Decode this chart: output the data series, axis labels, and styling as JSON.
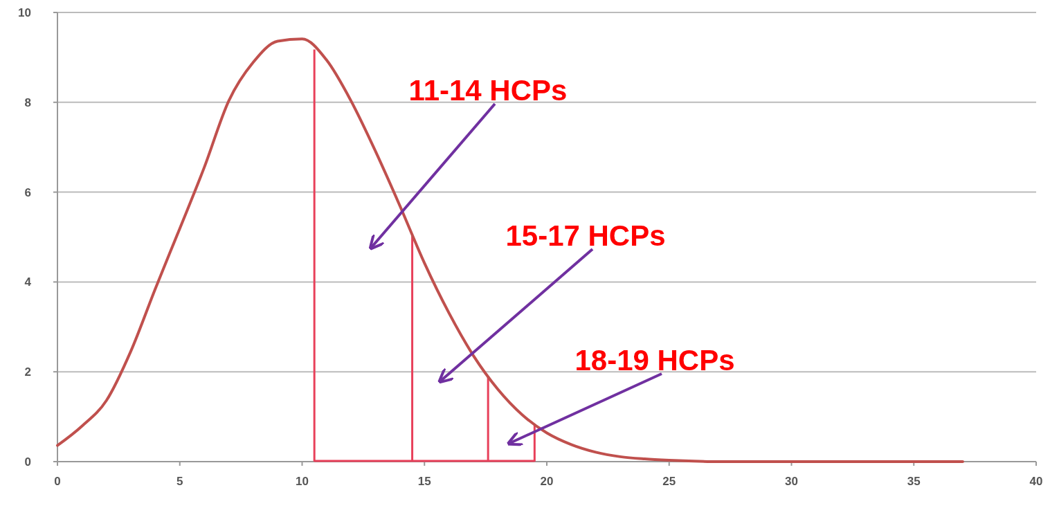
{
  "chart_data": {
    "type": "line",
    "x": [
      0,
      1,
      2,
      3,
      4,
      5,
      6,
      7,
      8,
      9,
      10,
      11,
      12,
      13,
      14,
      15,
      16,
      17,
      18,
      19,
      20,
      21,
      22,
      23,
      24,
      25,
      26,
      27,
      28,
      29,
      30,
      31,
      32,
      33,
      34,
      35,
      36,
      37
    ],
    "series": [
      {
        "color": "#c0504d",
        "values": [
          0.36,
          0.79,
          1.36,
          2.46,
          3.85,
          5.19,
          6.55,
          8.03,
          8.89,
          9.36,
          9.41,
          8.94,
          8.03,
          6.91,
          5.69,
          4.42,
          3.31,
          2.36,
          1.61,
          1.04,
          0.64,
          0.38,
          0.21,
          0.11,
          0.06,
          0.03,
          0.01,
          0,
          0,
          0,
          0,
          0,
          0,
          0,
          0,
          0,
          0,
          0
        ]
      }
    ],
    "xlim": [
      0,
      40
    ],
    "xticks": [
      0,
      5,
      10,
      15,
      20,
      25,
      30,
      35,
      40
    ],
    "ylim": [
      0,
      10
    ],
    "yticks": [
      0,
      2,
      4,
      6,
      8,
      10
    ],
    "grid": "y",
    "marker": "none",
    "line_style": "solid",
    "ref_lines": [
      {
        "axis": "x",
        "value": 10.5,
        "color": "#e8405a"
      },
      {
        "axis": "x",
        "value": 14.5,
        "color": "#e8405a"
      },
      {
        "axis": "x",
        "value": 17.6,
        "color": "#e8405a"
      },
      {
        "axis": "x",
        "value": 19.5,
        "color": "#e8405a"
      },
      {
        "axis": "y",
        "value": 0,
        "color": "#e8405a"
      }
    ],
    "annotations": [
      "11-14 HCPs",
      "15-17 HCPs",
      "18-19 HCPs"
    ]
  }
}
